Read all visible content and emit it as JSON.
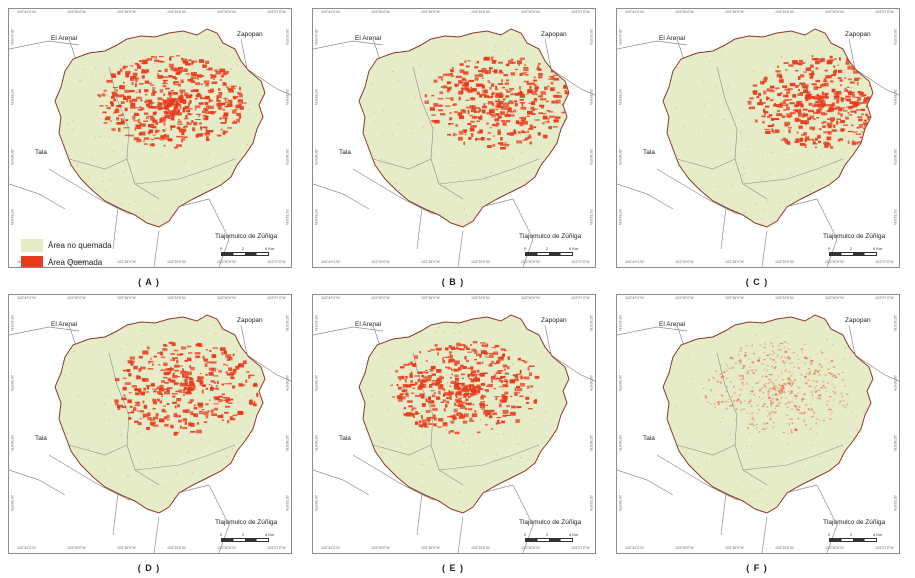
{
  "places": {
    "arenal": "El Arenal",
    "zapopan": "Zapopan",
    "tala": "Tala",
    "tlajomulco": "Tlajomulco de Zúñiga"
  },
  "legend": {
    "no_burn": "Área no quemada",
    "burn": "Área Quemada"
  },
  "legend_colors": {
    "no_burn": "#e6ebc8",
    "burn": "#e83a1c",
    "boundary": "#8a3a2a",
    "municipal": "#8f8f8f"
  },
  "scale": {
    "zero": "0",
    "two": "2",
    "four": "4 Km"
  },
  "coords_top": [
    "103°42'0\"W",
    "103°39'0\"W",
    "103°36'0\"W",
    "103°33'0\"W",
    "103°30'0\"W",
    "103°27'0\"W"
  ],
  "coords_side": [
    "20°42'0\"N",
    "20°39'0\"N",
    "20°36'0\"N",
    "20°33'0\"N"
  ],
  "panels": [
    {
      "label": "( A )",
      "intensity": 1.0,
      "style": "solid",
      "legend": true
    },
    {
      "label": "( B )",
      "intensity": 0.75,
      "style": "solid",
      "legend": false
    },
    {
      "label": "( C )",
      "intensity": 0.9,
      "style": "solid",
      "legend": false
    },
    {
      "label": "( D )",
      "intensity": 0.7,
      "style": "solid",
      "legend": false
    },
    {
      "label": "( E )",
      "intensity": 0.85,
      "style": "solid",
      "legend": false
    },
    {
      "label": "( F )",
      "intensity": 0.9,
      "style": "faint",
      "legend": false
    }
  ]
}
